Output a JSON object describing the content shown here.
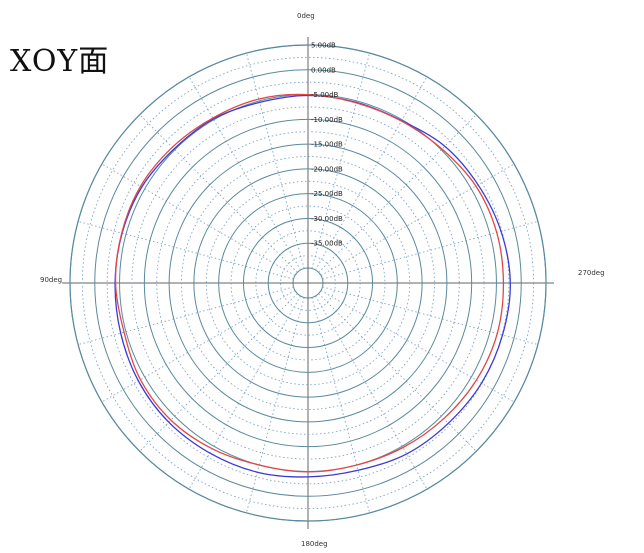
{
  "title": "XOY面",
  "chart_data": {
    "type": "polar-line",
    "angle_labels": [
      "0deg",
      "90deg",
      "180deg",
      "270deg"
    ],
    "r_tick_labels": [
      "5.00dB",
      "0.00dB",
      "-5.00dB",
      "-10.00dB",
      "-15.00dB",
      "-20.00dB",
      "-25.00dB",
      "-30.00dB",
      "-35.00dB"
    ],
    "r_ticks": [
      5,
      0,
      -5,
      -10,
      -15,
      -20,
      -25,
      -30,
      -35
    ],
    "rlim": [
      -40,
      5
    ],
    "angle_direction": "counterclockwise",
    "zero_angle": "top",
    "grid": true,
    "colors": {
      "grid_solid": "#5a8a9e",
      "grid_dotted": "#7fa3c7",
      "series_blue": "#3a3ad8",
      "series_red": "#e04848"
    },
    "series": [
      {
        "color": "#3a3ad8",
        "angles_deg": [
          0,
          15,
          30,
          45,
          60,
          75,
          90,
          105,
          120,
          135,
          150,
          165,
          180,
          195,
          210,
          225,
          240,
          255,
          270,
          285,
          300,
          315,
          330,
          345
        ],
        "values": [
          -5.2,
          -5.3,
          -4.8,
          -4.8,
          -4.3,
          -4.2,
          -4.1,
          -3.9,
          -3.5,
          -3.3,
          -3.4,
          -3.5,
          -3.9,
          -3.9,
          -3.2,
          -3.0,
          -2.6,
          -2.4,
          -2.2,
          -2.7,
          -3.4,
          -4.0,
          -5.2,
          -5.3
        ]
      },
      {
        "color": "#e04848",
        "angles_deg": [
          0,
          15,
          30,
          45,
          60,
          75,
          90,
          105,
          120,
          135,
          150,
          165,
          180,
          195,
          210,
          225,
          240,
          255,
          270,
          285,
          300,
          315,
          330,
          345
        ],
        "values": [
          -5.0,
          -4.6,
          -4.6,
          -4.3,
          -4.0,
          -4.1,
          -4.2,
          -4.6,
          -4.0,
          -3.9,
          -4.4,
          -5.0,
          -4.9,
          -5.0,
          -4.7,
          -4.3,
          -3.8,
          -3.5,
          -3.6,
          -3.6,
          -3.9,
          -4.8,
          -5.3,
          -5.4
        ]
      }
    ]
  }
}
